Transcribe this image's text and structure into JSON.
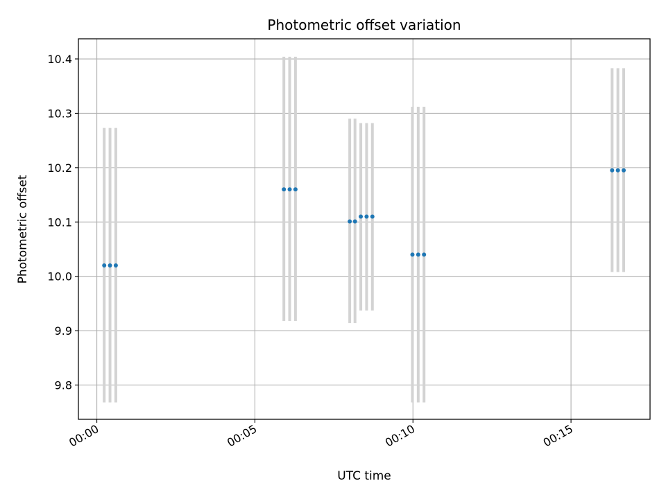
{
  "chart_data": {
    "type": "scatter",
    "title": "Photometric offset variation",
    "xlabel": "UTC time",
    "ylabel": "Photometric offset",
    "grid": true,
    "x_ticks": [
      "00:00",
      "00:05",
      "00:10",
      "00:15"
    ],
    "y_ticks": [
      "9.8",
      "9.9",
      "10.0",
      "10.1",
      "10.2",
      "10.3",
      "10.4"
    ],
    "xlim": [
      "23:59:25",
      "00:17:30"
    ],
    "ylim": [
      9.737,
      10.437
    ],
    "errorbar_color": "#d3d3d3",
    "marker_color": "#1f77b4",
    "series": [
      {
        "name": "",
        "points": [
          {
            "x": "00:00:14",
            "y": 10.02,
            "yerr_low": 9.768,
            "yerr_high": 10.273
          },
          {
            "x": "00:00:25",
            "y": 10.02,
            "yerr_low": 9.768,
            "yerr_high": 10.273
          },
          {
            "x": "00:00:36",
            "y": 10.02,
            "yerr_low": 9.768,
            "yerr_high": 10.273
          },
          {
            "x": "00:05:55",
            "y": 10.16,
            "yerr_low": 9.918,
            "yerr_high": 10.404
          },
          {
            "x": "00:06:06",
            "y": 10.16,
            "yerr_low": 9.918,
            "yerr_high": 10.404
          },
          {
            "x": "00:06:17",
            "y": 10.16,
            "yerr_low": 9.918,
            "yerr_high": 10.404
          },
          {
            "x": "00:08:00",
            "y": 10.101,
            "yerr_low": 9.914,
            "yerr_high": 10.29
          },
          {
            "x": "00:08:10",
            "y": 10.101,
            "yerr_low": 9.914,
            "yerr_high": 10.29
          },
          {
            "x": "00:08:21",
            "y": 10.11,
            "yerr_low": 9.937,
            "yerr_high": 10.282
          },
          {
            "x": "00:08:32",
            "y": 10.11,
            "yerr_low": 9.937,
            "yerr_high": 10.282
          },
          {
            "x": "00:08:43",
            "y": 10.11,
            "yerr_low": 9.937,
            "yerr_high": 10.282
          },
          {
            "x": "00:09:59",
            "y": 10.04,
            "yerr_low": 9.768,
            "yerr_high": 10.312
          },
          {
            "x": "00:10:10",
            "y": 10.04,
            "yerr_low": 9.768,
            "yerr_high": 10.312
          },
          {
            "x": "00:10:21",
            "y": 10.04,
            "yerr_low": 9.768,
            "yerr_high": 10.312
          },
          {
            "x": "00:16:18",
            "y": 10.195,
            "yerr_low": 10.008,
            "yerr_high": 10.383
          },
          {
            "x": "00:16:29",
            "y": 10.195,
            "yerr_low": 10.008,
            "yerr_high": 10.383
          },
          {
            "x": "00:16:40",
            "y": 10.195,
            "yerr_low": 10.008,
            "yerr_high": 10.383
          }
        ]
      }
    ]
  }
}
